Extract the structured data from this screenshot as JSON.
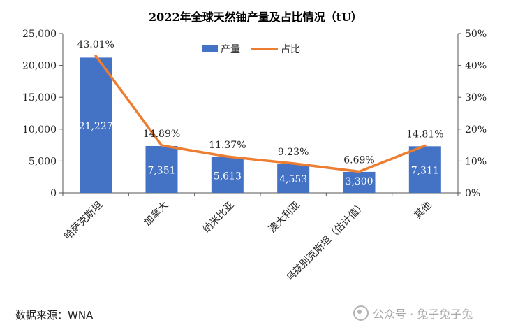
{
  "chart_data": {
    "type": "bar",
    "title": "2022年全球天然铀产量及占比情况（tU）",
    "categories": [
      "哈萨克斯坦",
      "加拿大",
      "纳米比亚",
      "澳大利亚",
      "乌兹别克斯坦（估计值）",
      "其他"
    ],
    "series": [
      {
        "name": "产量",
        "type": "bar",
        "axis": "left",
        "color": "#4472C4",
        "values": [
          21227,
          7351,
          5613,
          4553,
          3300,
          7311
        ],
        "labels": [
          "21,227",
          "7,351",
          "5,613",
          "4,553",
          "3,300",
          "7,311"
        ]
      },
      {
        "name": "占比",
        "type": "line",
        "axis": "right",
        "color": "#ED7D31",
        "values": [
          43.01,
          14.89,
          11.37,
          9.23,
          6.69,
          14.81
        ],
        "labels": [
          "43.01%",
          "14.89%",
          "11.37%",
          "9.23%",
          "6.69%",
          "14.81%"
        ]
      }
    ],
    "y_left": {
      "min": 0,
      "max": 25000,
      "ticks": [
        "0",
        "5,000",
        "10,000",
        "15,000",
        "20,000",
        "25,000"
      ]
    },
    "y_right": {
      "min": 0,
      "max": 50,
      "ticks": [
        "0%",
        "10%",
        "20%",
        "30%",
        "40%",
        "50%"
      ]
    },
    "legend_position": "top-center",
    "grid": false
  },
  "footer": {
    "source": "数据来源：WNA",
    "watermark": "公众号 · 兔子兔子兔"
  }
}
